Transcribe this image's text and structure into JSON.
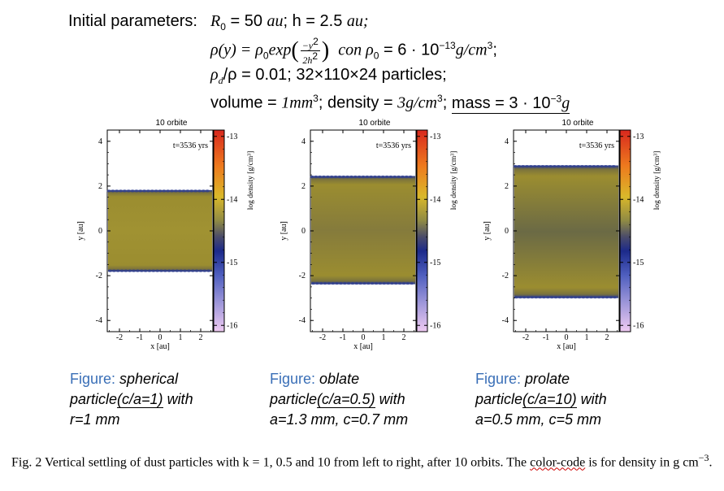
{
  "params": {
    "label": "Initial parameters:",
    "line1": {
      "R0": "R",
      "R0_sub": "0",
      "R0_val": " = 50 ",
      "unit_au": "au",
      "h": "; h = 2.5 ",
      "h_unit": "au;"
    },
    "line2": {
      "rho": "ρ(y) = ρ",
      "sub0": "0",
      "exp": "exp",
      "frac_num": "−y",
      "frac_num_sup": "2",
      "frac_den": "2h",
      "frac_den_sup": "2",
      "con": "con ρ",
      "con_sub": "0",
      "val": " = 6 · 10",
      "val_sup": "−13",
      "unit": "g/cm",
      "unit_sup": "3",
      "end": ";"
    },
    "line3": {
      "text": "ρ",
      "sub": "d",
      "rest": "/ρ = 0.01; 32×110×24 particles;"
    },
    "line4": {
      "vol": "volume = ",
      "vol_val": "1mm",
      "vol_sup": "3",
      "dens": "; density = ",
      "dens_val": "3g/cm",
      "dens_sup": "3",
      "semi": ";",
      "mass": "mass = 3 · 10",
      "mass_sup": "−3",
      "mass_unit": "g"
    }
  },
  "panels": [
    {
      "title": "10 orbite",
      "time": "t=3536 yrs",
      "slab_top": 1.82,
      "slab_bottom": -1.82
    },
    {
      "title": "10 orbite",
      "time": "t=3536 yrs",
      "slab_top": 2.45,
      "slab_bottom": -2.38
    },
    {
      "title": "10 orbite",
      "time": "t=3536 yrs",
      "slab_top": 2.92,
      "slab_bottom": -3.0
    }
  ],
  "axes": {
    "xlabel": "x [au]",
    "ylabel": "y [au]",
    "cbar_label": "log density [g/cm³]",
    "xticks": [
      "-2",
      "-1",
      "0",
      "1",
      "2"
    ],
    "yticks": [
      "4",
      "2",
      "0",
      "-2",
      "-4"
    ],
    "cbar_ticks": [
      "-13",
      "-14",
      "-15",
      "-16"
    ]
  },
  "captions": [
    {
      "head": "Figure: ",
      "l1": "spherical",
      "l2a": "particle",
      "l2u": "(c/a=1)",
      "l2b": " with",
      "l3": "r=1 mm"
    },
    {
      "head": "Figure: ",
      "l1": "oblate",
      "l2a": "particle",
      "l2u": "(c/a=0.5)",
      "l2b": " with",
      "l3": "a=1.3 mm, c=0.7 mm"
    },
    {
      "head": "Figure: ",
      "l1": "prolate",
      "l2a": "particle",
      "l2u": "(c/a=10)",
      "l2b": " with",
      "l3": "a=0.5 mm, c=5 mm"
    }
  ],
  "fig_caption": {
    "pre": "Fig. 2 Vertical settling of dust particles with k = 1, 0.5 and 10 from left to right, after 10 orbits. The ",
    "wavy": "color-code",
    "post": " is for density in g cm",
    "sup": "−3",
    "end": "."
  },
  "colors": {
    "slab": "#9a8f3a",
    "slab_edge": "#2a3a8c",
    "caption_blue": "#3a6fb7"
  }
}
